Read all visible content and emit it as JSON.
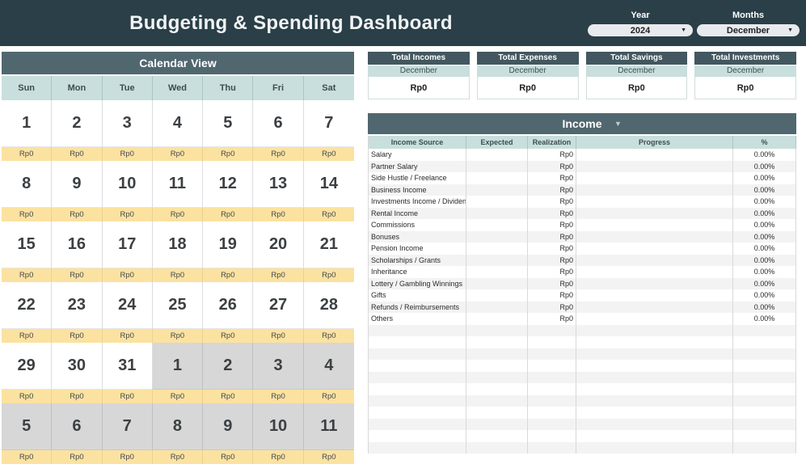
{
  "header": {
    "title": "Budgeting & Spending Dashboard",
    "year_label": "Year",
    "year_value": "2024",
    "months_label": "Months",
    "months_value": "December"
  },
  "calendar": {
    "title": "Calendar View",
    "day_headers": [
      "Sun",
      "Mon",
      "Tue",
      "Wed",
      "Thu",
      "Fri",
      "Sat"
    ],
    "cell_amount": "Rp0",
    "weeks": [
      {
        "days": [
          {
            "n": "1",
            "current": true
          },
          {
            "n": "2",
            "current": true
          },
          {
            "n": "3",
            "current": true
          },
          {
            "n": "4",
            "current": true
          },
          {
            "n": "5",
            "current": true
          },
          {
            "n": "6",
            "current": true
          },
          {
            "n": "7",
            "current": true
          }
        ]
      },
      {
        "days": [
          {
            "n": "8",
            "current": true
          },
          {
            "n": "9",
            "current": true
          },
          {
            "n": "10",
            "current": true
          },
          {
            "n": "11",
            "current": true
          },
          {
            "n": "12",
            "current": true
          },
          {
            "n": "13",
            "current": true
          },
          {
            "n": "14",
            "current": true
          }
        ]
      },
      {
        "days": [
          {
            "n": "15",
            "current": true
          },
          {
            "n": "16",
            "current": true
          },
          {
            "n": "17",
            "current": true
          },
          {
            "n": "18",
            "current": true
          },
          {
            "n": "19",
            "current": true
          },
          {
            "n": "20",
            "current": true
          },
          {
            "n": "21",
            "current": true
          }
        ]
      },
      {
        "days": [
          {
            "n": "22",
            "current": true
          },
          {
            "n": "23",
            "current": true
          },
          {
            "n": "24",
            "current": true
          },
          {
            "n": "25",
            "current": true
          },
          {
            "n": "26",
            "current": true
          },
          {
            "n": "27",
            "current": true
          },
          {
            "n": "28",
            "current": true
          }
        ]
      },
      {
        "days": [
          {
            "n": "29",
            "current": true
          },
          {
            "n": "30",
            "current": true
          },
          {
            "n": "31",
            "current": true
          },
          {
            "n": "1",
            "current": false
          },
          {
            "n": "2",
            "current": false
          },
          {
            "n": "3",
            "current": false
          },
          {
            "n": "4",
            "current": false
          }
        ]
      },
      {
        "days": [
          {
            "n": "5",
            "current": false
          },
          {
            "n": "6",
            "current": false
          },
          {
            "n": "7",
            "current": false
          },
          {
            "n": "8",
            "current": false
          },
          {
            "n": "9",
            "current": false
          },
          {
            "n": "10",
            "current": false
          },
          {
            "n": "11",
            "current": false
          }
        ]
      }
    ]
  },
  "summary_cards": [
    {
      "title": "Total Incomes",
      "period": "December",
      "value": "Rp0"
    },
    {
      "title": "Total Expenses",
      "period": "December",
      "value": "Rp0"
    },
    {
      "title": "Total Savings",
      "period": "December",
      "value": "Rp0"
    },
    {
      "title": "Total Investments",
      "period": "December",
      "value": "Rp0"
    }
  ],
  "income": {
    "title": "Income",
    "columns": [
      "Income Source",
      "Expected",
      "Realization",
      "Progress",
      "%"
    ],
    "rows": [
      {
        "source": "Salary",
        "expected": "",
        "realization": "Rp0",
        "progress": "",
        "percent": "0.00%"
      },
      {
        "source": "Partner Salary",
        "expected": "",
        "realization": "Rp0",
        "progress": "",
        "percent": "0.00%"
      },
      {
        "source": "Side Hustle / Freelance",
        "expected": "",
        "realization": "Rp0",
        "progress": "",
        "percent": "0.00%"
      },
      {
        "source": "Business Income",
        "expected": "",
        "realization": "Rp0",
        "progress": "",
        "percent": "0.00%"
      },
      {
        "source": "Investments Income / Dividens / Ca",
        "expected": "",
        "realization": "Rp0",
        "progress": "",
        "percent": "0.00%"
      },
      {
        "source": "Rental Income",
        "expected": "",
        "realization": "Rp0",
        "progress": "",
        "percent": "0.00%"
      },
      {
        "source": "Commissions",
        "expected": "",
        "realization": "Rp0",
        "progress": "",
        "percent": "0.00%"
      },
      {
        "source": "Bonuses",
        "expected": "",
        "realization": "Rp0",
        "progress": "",
        "percent": "0.00%"
      },
      {
        "source": "Pension Income",
        "expected": "",
        "realization": "Rp0",
        "progress": "",
        "percent": "0.00%"
      },
      {
        "source": "Scholarships / Grants",
        "expected": "",
        "realization": "Rp0",
        "progress": "",
        "percent": "0.00%"
      },
      {
        "source": "Inheritance",
        "expected": "",
        "realization": "Rp0",
        "progress": "",
        "percent": "0.00%"
      },
      {
        "source": "Lottery / Gambling Winnings",
        "expected": "",
        "realization": "Rp0",
        "progress": "",
        "percent": "0.00%"
      },
      {
        "source": "Gifts",
        "expected": "",
        "realization": "Rp0",
        "progress": "",
        "percent": "0.00%"
      },
      {
        "source": "Refunds / Reimbursements",
        "expected": "",
        "realization": "Rp0",
        "progress": "",
        "percent": "0.00%"
      },
      {
        "source": "Others",
        "expected": "",
        "realization": "Rp0",
        "progress": "",
        "percent": "0.00%"
      }
    ],
    "empty_rows": 11
  },
  "colors": {
    "topbar": "#2a3f47",
    "section_bar": "#516770",
    "card_header": "#42575f",
    "light_teal": "#c8dfdd",
    "calendar_amount_yellow": "#fbe2a0",
    "out_of_month_gray": "#d7d7d7"
  }
}
